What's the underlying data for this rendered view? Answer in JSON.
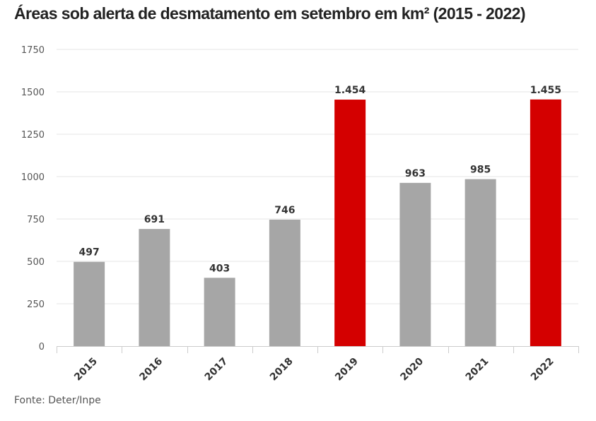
{
  "chart_data": {
    "type": "bar",
    "title": "Áreas sob alerta de desmatamento em setembro em km² (2015 - 2022)",
    "categories": [
      "2015",
      "2016",
      "2017",
      "2018",
      "2019",
      "2020",
      "2021",
      "2022"
    ],
    "values": [
      497,
      691,
      403,
      746,
      1454,
      963,
      985,
      1455
    ],
    "data_labels": [
      "497",
      "691",
      "403",
      "746",
      "1.454",
      "963",
      "985",
      "1.455"
    ],
    "ylim": [
      0,
      1750
    ],
    "yticks": [
      0,
      250,
      500,
      750,
      1000,
      1250,
      1500,
      1750
    ],
    "grid": true,
    "xlabel": "",
    "ylabel": "",
    "colors": {
      "default": "#a6a6a6",
      "highlight": "#d40000"
    },
    "highlighted": [
      "2019",
      "2022"
    ],
    "source": "Fonte: Deter/Inpe"
  }
}
